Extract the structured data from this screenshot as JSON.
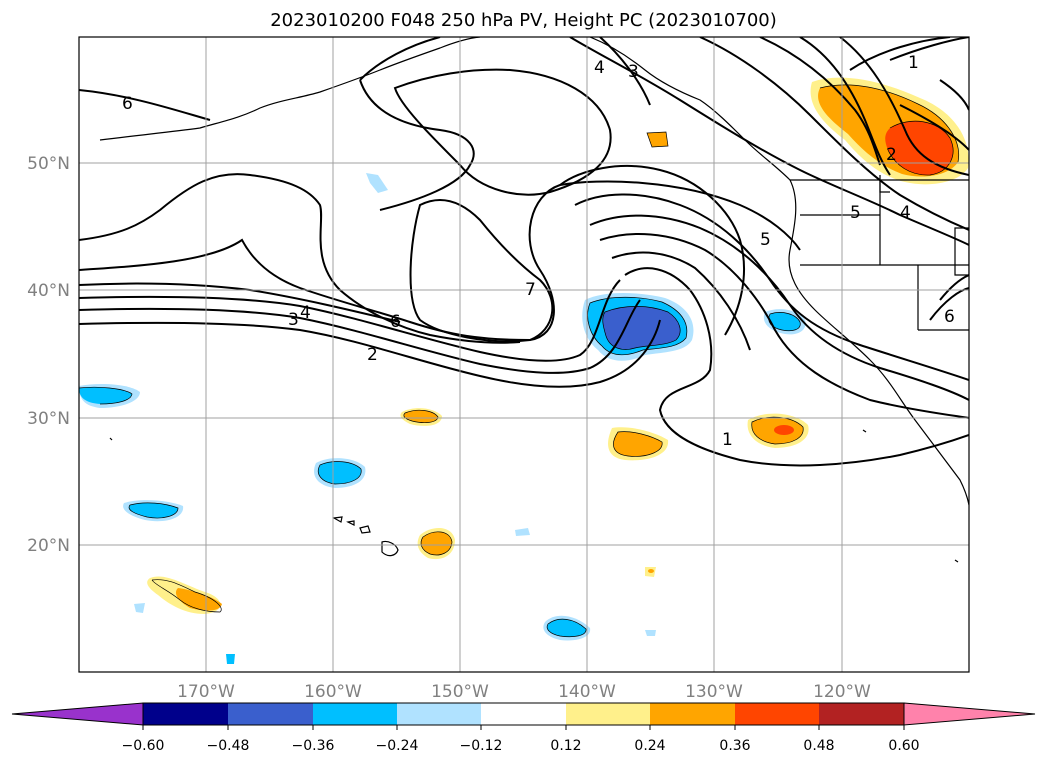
{
  "title": "2023010200 F048 250 hPa PV, Height PC (2023010700)",
  "lat_labels": [
    "50°N",
    "40°N",
    "30°N",
    "20°N"
  ],
  "lon_labels": [
    "170°W",
    "160°W",
    "150°W",
    "140°W",
    "130°W",
    "120°W"
  ],
  "colorbar": {
    "ticks": [
      "−0.60",
      "−0.48",
      "−0.36",
      "−0.24",
      "−0.12",
      "0.12",
      "0.24",
      "0.36",
      "0.48",
      "0.60"
    ],
    "colors": [
      "#9932cc",
      "#00008b",
      "#3a5fcd",
      "#00bfff",
      "#b0e2ff",
      "#ffffff",
      "#fff08b",
      "#ffa500",
      "#ff4500",
      "#b22222",
      "#ff82ab"
    ]
  },
  "contour_labels": [
    "6",
    "4",
    "3",
    "1",
    "2",
    "5",
    "4",
    "5",
    "7",
    "6",
    "3",
    "4",
    "2",
    "6",
    "1"
  ],
  "colors": {
    "pv_dark_blue": "#3a5fcd",
    "pv_blue": "#00bfff",
    "pv_light_blue": "#b0e2ff",
    "pv_yellow": "#fff08b",
    "pv_orange": "#ffa500",
    "pv_red": "#ff4500"
  }
}
